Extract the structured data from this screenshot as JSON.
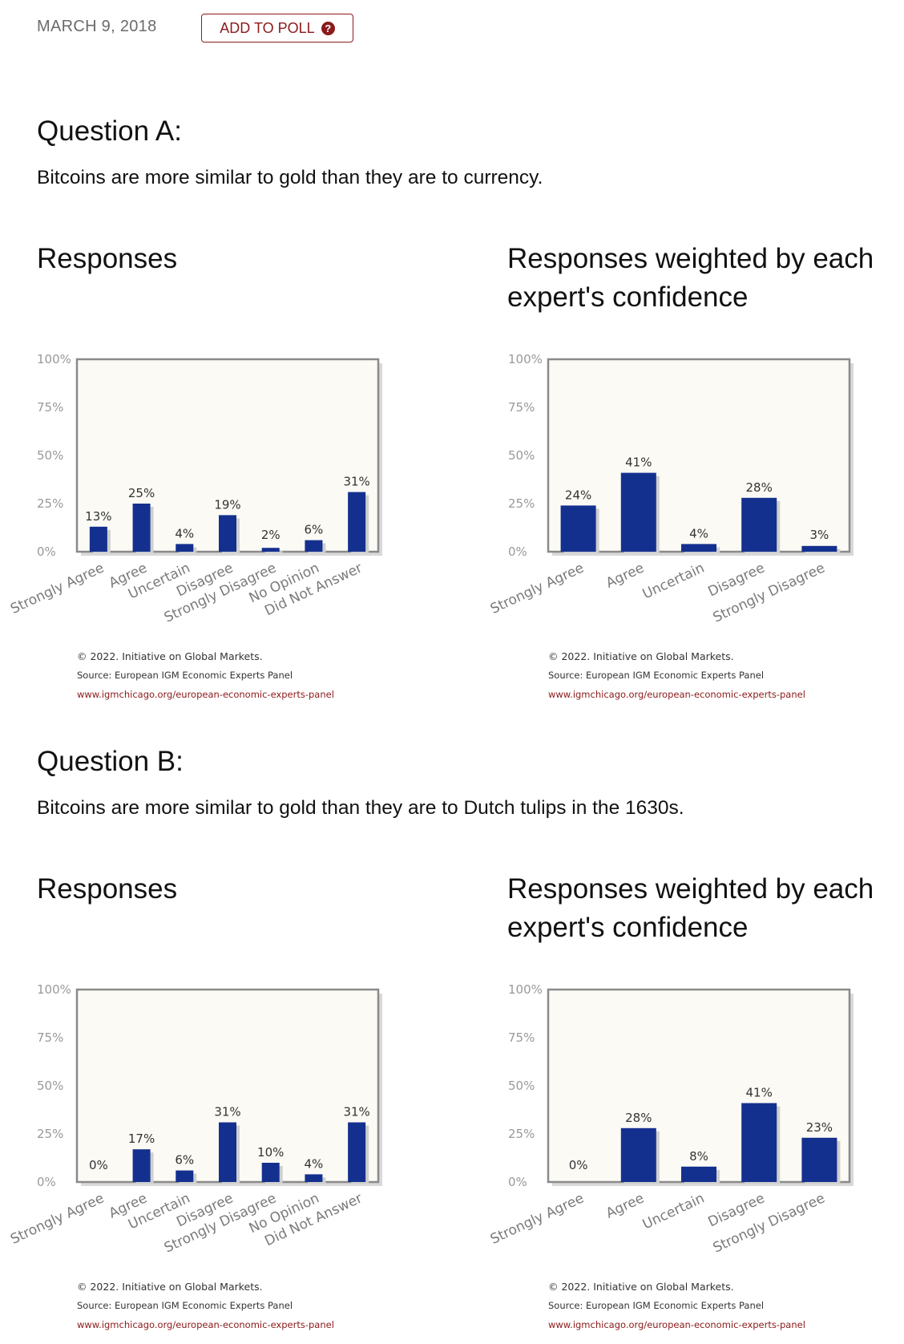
{
  "header": {
    "date": "MARCH 9, 2018",
    "add_to_poll_label": "ADD TO POLL",
    "help_icon": "?"
  },
  "questions": [
    {
      "title": "Question A:",
      "text": "Bitcoins are more similar to gold than they are to currency.",
      "responses_title": "Responses",
      "weighted_title": "Responses weighted by each expert's confidence"
    },
    {
      "title": "Question B:",
      "text": "Bitcoins are more similar to gold than they are to Dutch tulips in the 1630s.",
      "responses_title": "Responses",
      "weighted_title": "Responses weighted by each expert's confidence"
    }
  ],
  "footer": {
    "copyright": "© 2022. Initiative on Global Markets.",
    "source": "Source: European IGM Economic Experts Panel",
    "link": "www.igmchicago.org/european-economic-experts-panel"
  },
  "colors": {
    "bar": "#14308f",
    "plot_bg": "#fbfaf4",
    "axis_frame": "#8a8a8a",
    "accent": "#8b1a1a",
    "link": "#8b1a1a"
  },
  "chart_data": [
    {
      "type": "bar",
      "yticks": [
        "100%",
        "75%",
        "50%",
        "25%",
        "0%"
      ],
      "ylim": [
        0,
        100
      ],
      "categories": [
        "Strongly Agree",
        "Agree",
        "Uncertain",
        "Disagree",
        "Strongly Disagree",
        "No Opinion",
        "Did Not Answer"
      ],
      "values": [
        13,
        25,
        4,
        19,
        2,
        6,
        31
      ],
      "labels": [
        "13%",
        "25%",
        "4%",
        "19%",
        "2%",
        "6%",
        "31%"
      ]
    },
    {
      "type": "bar",
      "yticks": [
        "100%",
        "75%",
        "50%",
        "25%",
        "0%"
      ],
      "ylim": [
        0,
        100
      ],
      "categories": [
        "Strongly Agree",
        "Agree",
        "Uncertain",
        "Disagree",
        "Strongly Disagree"
      ],
      "values": [
        24,
        41,
        4,
        28,
        3
      ],
      "labels": [
        "24%",
        "41%",
        "4%",
        "28%",
        "3%"
      ]
    },
    {
      "type": "bar",
      "yticks": [
        "100%",
        "75%",
        "50%",
        "25%",
        "0%"
      ],
      "ylim": [
        0,
        100
      ],
      "categories": [
        "Strongly Agree",
        "Agree",
        "Uncertain",
        "Disagree",
        "Strongly Disagree",
        "No Opinion",
        "Did Not Answer"
      ],
      "values": [
        0,
        17,
        6,
        31,
        10,
        4,
        31
      ],
      "labels": [
        "0%",
        "17%",
        "6%",
        "31%",
        "10%",
        "4%",
        "31%"
      ]
    },
    {
      "type": "bar",
      "yticks": [
        "100%",
        "75%",
        "50%",
        "25%",
        "0%"
      ],
      "ylim": [
        0,
        100
      ],
      "categories": [
        "Strongly Agree",
        "Agree",
        "Uncertain",
        "Disagree",
        "Strongly Disagree"
      ],
      "values": [
        0,
        28,
        8,
        41,
        23
      ],
      "labels": [
        "0%",
        "28%",
        "8%",
        "41%",
        "23%"
      ]
    }
  ]
}
